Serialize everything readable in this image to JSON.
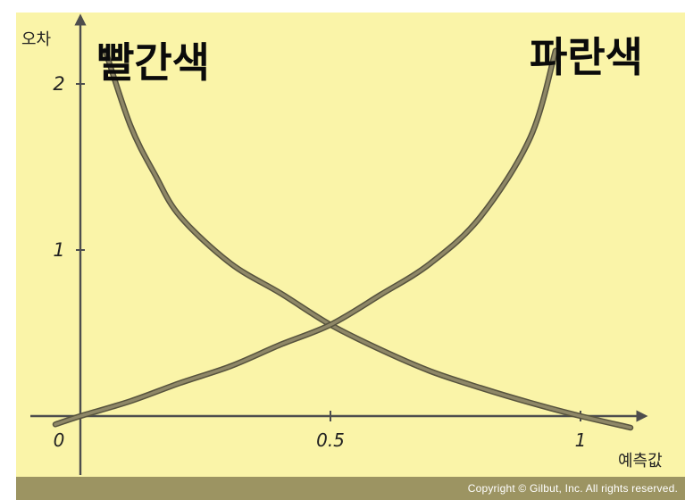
{
  "colors": {
    "background": "#faf4a8",
    "footer": "#9c9462",
    "axis": "#4d4d4d",
    "curve": "#8e8767",
    "curve_outline": "#57533d"
  },
  "footer": {
    "copyright": "Copyright © Gilbut, Inc. All rights reserved."
  },
  "chart_data": {
    "type": "line",
    "title": "",
    "xlabel": "예측값",
    "ylabel": "오차",
    "xlim": [
      0,
      1.1
    ],
    "ylim": [
      0,
      2.25
    ],
    "x_ticks": [
      {
        "value": 0,
        "label": "0"
      },
      {
        "value": 0.5,
        "label": "0.5"
      },
      {
        "value": 1,
        "label": "1"
      }
    ],
    "y_ticks": [
      {
        "value": 1,
        "label": "1"
      },
      {
        "value": 2,
        "label": "2"
      }
    ],
    "grid": false,
    "series": [
      {
        "name": "빨간색",
        "x": [
          0.05,
          0.1,
          0.15,
          0.2,
          0.3,
          0.4,
          0.5,
          0.6,
          0.7,
          0.8,
          0.9,
          1.0,
          1.1
        ],
        "y": [
          2.2,
          1.75,
          1.45,
          1.2,
          0.92,
          0.74,
          0.55,
          0.4,
          0.27,
          0.17,
          0.08,
          0.0,
          -0.07
        ]
      },
      {
        "name": "파란색",
        "x": [
          -0.05,
          0.0,
          0.1,
          0.2,
          0.3,
          0.4,
          0.5,
          0.6,
          0.7,
          0.8,
          0.9,
          0.95
        ],
        "y": [
          -0.05,
          0.0,
          0.09,
          0.2,
          0.3,
          0.43,
          0.55,
          0.73,
          0.92,
          1.2,
          1.68,
          2.2
        ]
      }
    ],
    "series_labels_position": [
      "top-left",
      "top-right"
    ]
  }
}
